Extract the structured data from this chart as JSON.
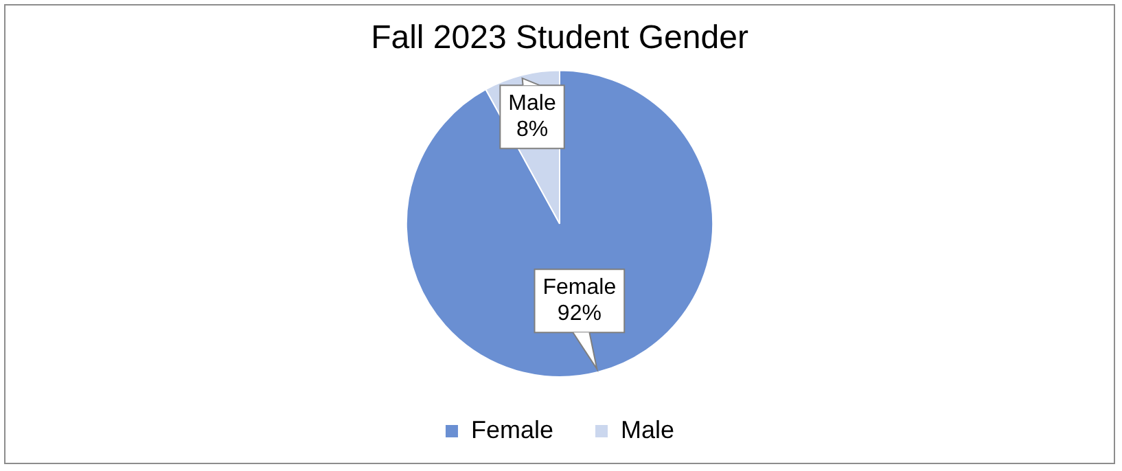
{
  "chart_data": {
    "type": "pie",
    "title": "Fall 2023 Student Gender",
    "categories": [
      "Female",
      "Male"
    ],
    "values": [
      92,
      8
    ],
    "colors": [
      "#6a8fd2",
      "#cbd7ee"
    ],
    "value_labels": [
      "92%",
      "8%"
    ],
    "legend": "bottom"
  }
}
